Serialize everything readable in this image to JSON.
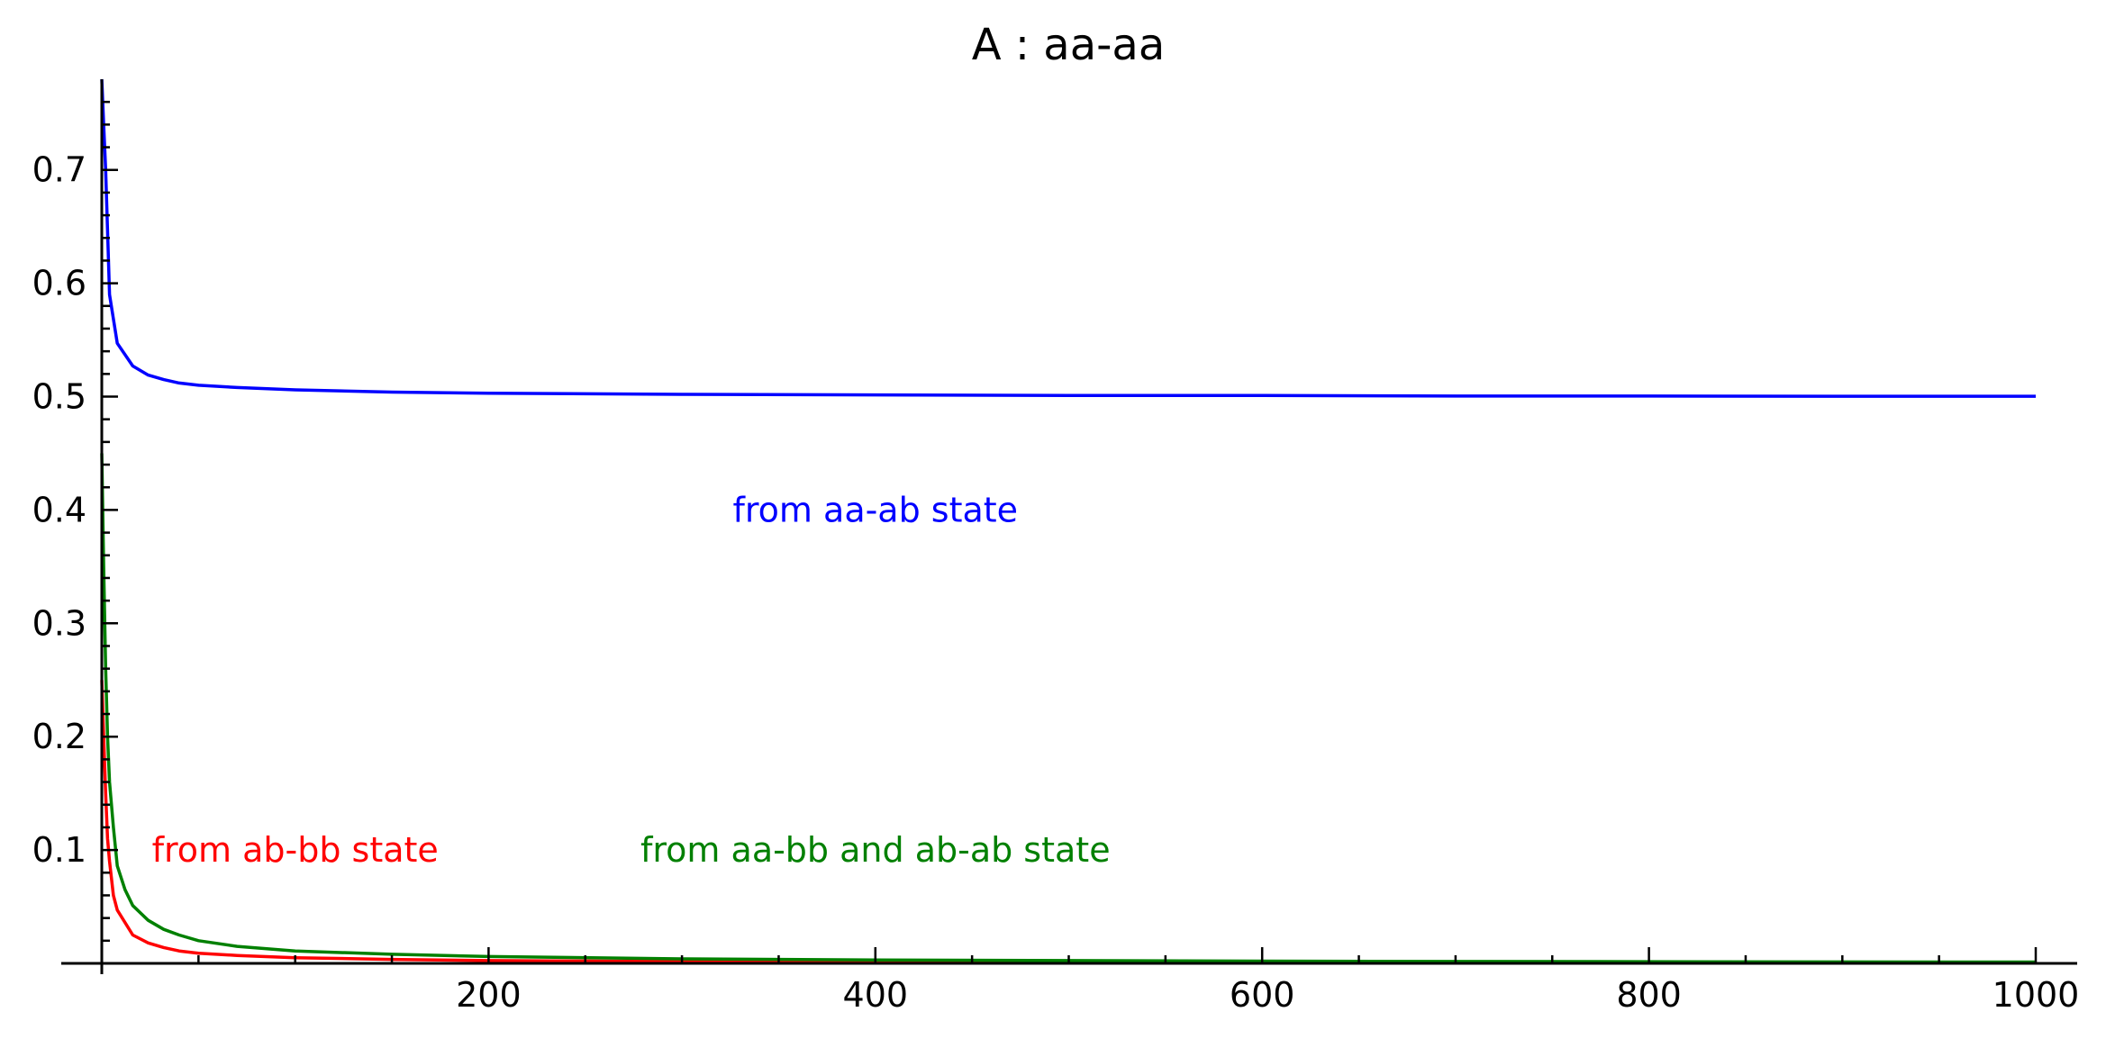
{
  "chart_data": {
    "type": "line",
    "title": "A : aa-aa",
    "xlabel": "",
    "ylabel": "",
    "xlim": [
      0,
      1000
    ],
    "ylim": [
      0,
      0.78
    ],
    "grid": false,
    "x_ticks": [
      200,
      400,
      600,
      800,
      1000
    ],
    "x_tick_labels": [
      "200",
      "400",
      "600",
      "800",
      "1000"
    ],
    "y_ticks": [
      0.1,
      0.2,
      0.3,
      0.4,
      0.5,
      0.6,
      0.7
    ],
    "y_tick_labels": [
      "0.1",
      "0.2",
      "0.3",
      "0.4",
      "0.5",
      "0.6",
      "0.7"
    ],
    "series": [
      {
        "color": "#0000ff",
        "x": [
          0,
          1,
          2,
          4,
          8,
          16,
          24,
          32,
          40,
          50,
          70,
          100,
          150,
          200,
          300,
          400,
          500,
          600,
          700,
          800,
          900,
          1000
        ],
        "values": [
          0.78,
          0.74,
          0.7,
          0.59,
          0.547,
          0.527,
          0.519,
          0.515,
          0.512,
          0.51,
          0.508,
          0.506,
          0.504,
          0.503,
          0.502,
          0.5015,
          0.501,
          0.501,
          0.5005,
          0.5005,
          0.5003,
          0.5003
        ]
      },
      {
        "color": "#ff0000",
        "x": [
          0,
          1,
          2,
          3,
          4,
          6,
          8,
          16,
          24,
          32,
          40,
          50,
          70,
          100,
          150,
          200,
          300,
          400,
          500,
          600,
          700,
          800,
          900,
          1000
        ],
        "values": [
          0.25,
          0.2,
          0.15,
          0.11,
          0.09,
          0.06,
          0.047,
          0.025,
          0.018,
          0.014,
          0.011,
          0.009,
          0.007,
          0.005,
          0.0035,
          0.0025,
          0.0017,
          0.0013,
          0.001,
          0.0008,
          0.0007,
          0.0006,
          0.0006,
          0.0005
        ]
      },
      {
        "color": "#008000",
        "x": [
          0,
          1,
          2,
          3,
          4,
          6,
          8,
          12,
          16,
          24,
          32,
          40,
          50,
          70,
          100,
          150,
          200,
          300,
          400,
          500,
          600,
          700,
          800,
          900,
          1000
        ],
        "values": [
          0.45,
          0.35,
          0.26,
          0.2,
          0.16,
          0.12,
          0.086,
          0.065,
          0.051,
          0.038,
          0.03,
          0.025,
          0.02,
          0.015,
          0.011,
          0.008,
          0.006,
          0.004,
          0.003,
          0.0025,
          0.002,
          0.0017,
          0.0015,
          0.0013,
          0.0012
        ]
      }
    ],
    "annotations": [
      {
        "text": "from aa-ab state",
        "color": "#0000ff",
        "x": 400,
        "y": 0.4
      },
      {
        "text": "from ab-bb state",
        "color": "#ff0000",
        "x": 100,
        "y": 0.1
      },
      {
        "text": "from aa-bb and ab-ab state",
        "color": "#008000",
        "x": 400,
        "y": 0.1
      }
    ]
  }
}
